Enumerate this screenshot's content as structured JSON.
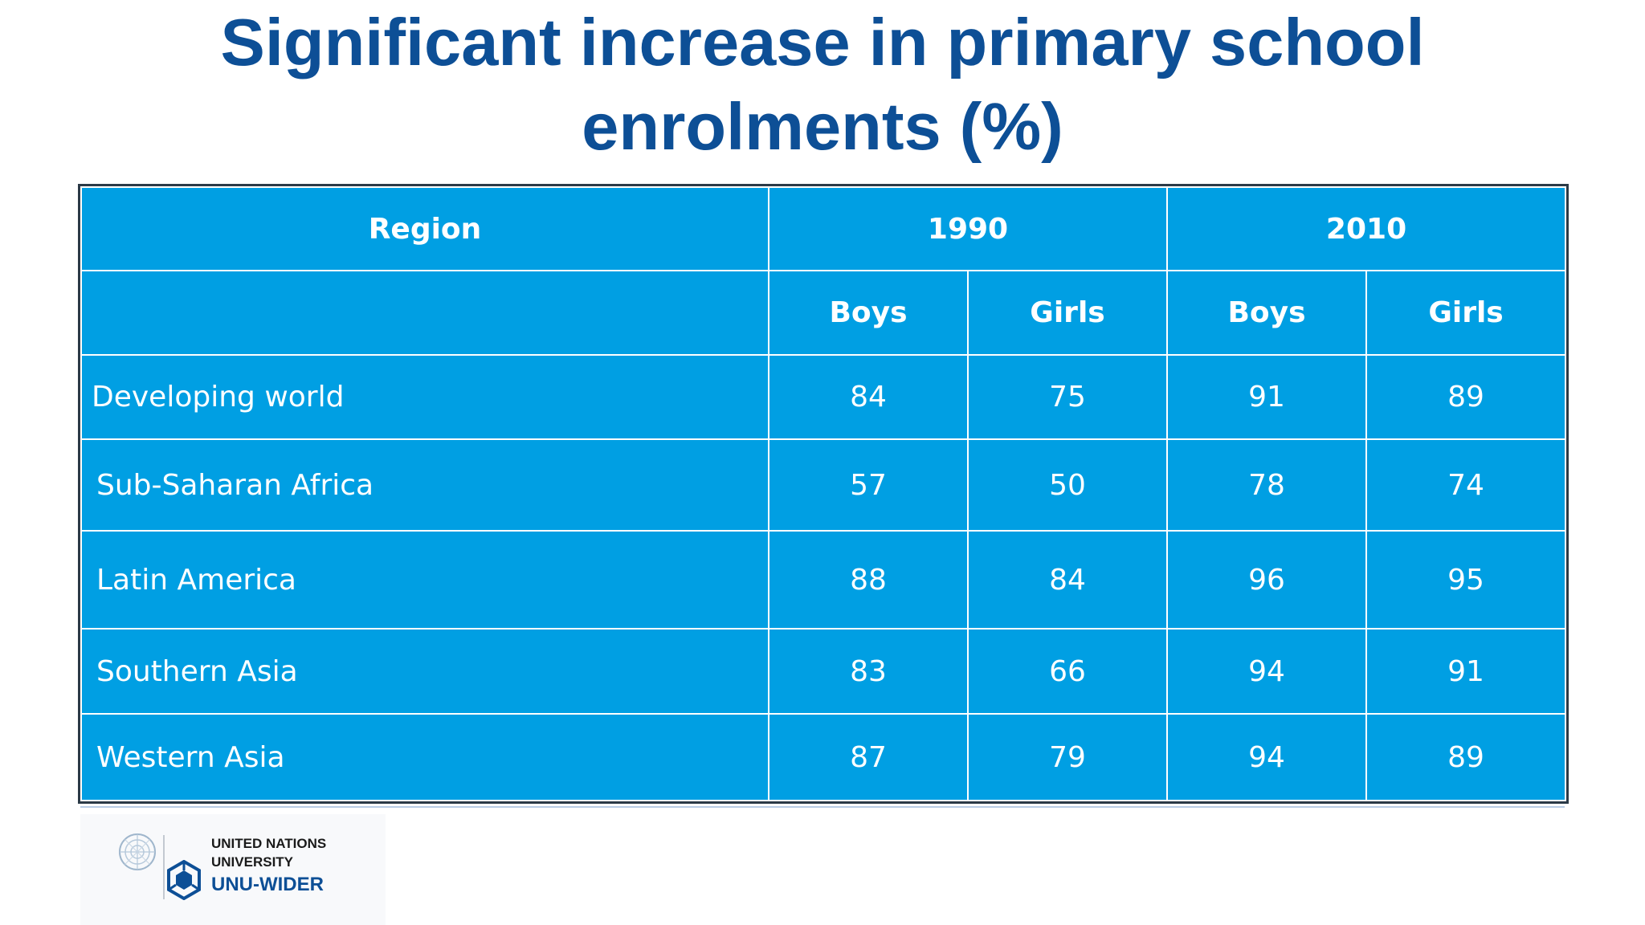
{
  "title": {
    "line1": "Significant increase in primary school",
    "line2": "enrolments (%)"
  },
  "table": {
    "header": {
      "region": "Region",
      "year1": "1990",
      "year2": "2010"
    },
    "subheader": {
      "boys_1990": "Boys",
      "girls_1990": "Girls",
      "boys_2010": "Boys",
      "girls_2010": "Girls"
    },
    "rows": [
      {
        "region": "Developing world",
        "boys_1990": "84",
        "girls_1990": "75",
        "boys_2010": "91",
        "girls_2010": "89"
      },
      {
        "region": "Sub-Saharan Africa",
        "boys_1990": "57",
        "girls_1990": "50",
        "boys_2010": "78",
        "girls_2010": "74"
      },
      {
        "region": "Latin America",
        "boys_1990": "88",
        "girls_1990": "84",
        "boys_2010": "96",
        "girls_2010": "95"
      },
      {
        "region": "Southern Asia",
        "boys_1990": "83",
        "girls_1990": "66",
        "boys_2010": "94",
        "girls_2010": "91"
      },
      {
        "region": "Western Asia",
        "boys_1990": "87",
        "girls_1990": "79",
        "boys_2010": "94",
        "girls_2010": "89"
      }
    ]
  },
  "footer": {
    "logo_line1": "UNITED NATIONS",
    "logo_line2": "UNIVERSITY",
    "logo_line3": "UNU-WIDER"
  },
  "colors": {
    "title": "#0d4f96",
    "table_fill": "#009fe3",
    "table_text": "#ffffff",
    "table_border": "#2b3a47",
    "logo_accent": "#0d4f96"
  },
  "icons": {
    "emblem": "un-emblem-icon",
    "mark": "unu-wider-mark-icon"
  }
}
